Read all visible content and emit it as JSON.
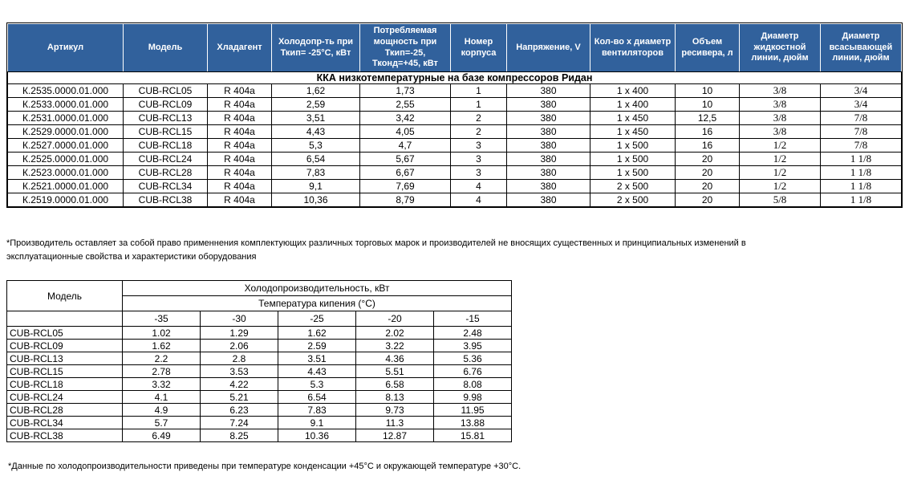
{
  "colors": {
    "header_bg": "#31619C",
    "header_text": "#FFFFFF",
    "border": "#000000"
  },
  "spec_table": {
    "headers": [
      "Артикул",
      "Модель",
      "Хладагент",
      "Холодопр-ть при Ткип= -25°С, кВт",
      "Потребляемая мощность при Ткип=-25, Тконд=+45, кВт",
      "Номер корпуса",
      "Напряжение, V",
      "Кол-во х диаметр вентиляторов",
      "Объем ресивера, л",
      "Диаметр жидкостной линии, дюйм",
      "Диаметр всасывающей линии, дюйм"
    ],
    "section_title": "ККА низкотемпературные на базе компрессоров Ридан",
    "rows": [
      [
        "К.2535.0000.01.000",
        "CUB-RCL05",
        "R 404a",
        "1,62",
        "1,73",
        "1",
        "380",
        "1 x 400",
        "10",
        "3/8",
        "3/4"
      ],
      [
        "К.2533.0000.01.000",
        "CUB-RCL09",
        "R 404a",
        "2,59",
        "2,55",
        "1",
        "380",
        "1 x 400",
        "10",
        "3/8",
        "3/4"
      ],
      [
        "К.2531.0000.01.000",
        "CUB-RCL13",
        "R 404a",
        "3,51",
        "3,42",
        "2",
        "380",
        "1 x 450",
        "12,5",
        "3/8",
        "7/8"
      ],
      [
        "К.2529.0000.01.000",
        "CUB-RCL15",
        "R 404a",
        "4,43",
        "4,05",
        "2",
        "380",
        "1 x 450",
        "16",
        "3/8",
        "7/8"
      ],
      [
        "К.2527.0000.01.000",
        "CUB-RCL18",
        "R 404a",
        "5,3",
        "4,7",
        "3",
        "380",
        "1 x 500",
        "16",
        "1/2",
        "7/8"
      ],
      [
        "К.2525.0000.01.000",
        "CUB-RCL24",
        "R 404a",
        "6,54",
        "5,67",
        "3",
        "380",
        "1 x 500",
        "20",
        "1/2",
        "1 1/8"
      ],
      [
        "К.2523.0000.01.000",
        "CUB-RCL28",
        "R 404a",
        "7,83",
        "6,67",
        "3",
        "380",
        "1 x 500",
        "20",
        "1/2",
        "1 1/8"
      ],
      [
        "К.2521.0000.01.000",
        "CUB-RCL34",
        "R 404a",
        "9,1",
        "7,69",
        "4",
        "380",
        "2 x 500",
        "20",
        "1/2",
        "1 1/8"
      ],
      [
        "К.2519.0000.01.000",
        "CUB-RCL38",
        "R 404a",
        "10,36",
        "8,79",
        "4",
        "380",
        "2 x 500",
        "20",
        "5/8",
        "1 1/8"
      ]
    ]
  },
  "manufacturer_note": {
    "line1": "*Производитель оставляет за собой право применнения комплектующих различных торговых марок и производителей не вносящих существенных и принципиальных изменений в",
    "line2": "эксплуатационные свойства и характеристики оборудования"
  },
  "capacity_table": {
    "model_header": "Модель",
    "group_header": "Холодопроизводительность, кВт",
    "sub_header": "Температура кипения (°С)",
    "temps": [
      "-35",
      "-30",
      "-25",
      "-20",
      "-15"
    ],
    "rows": [
      {
        "model": "CUB-RCL05",
        "values": [
          "1.02",
          "1.29",
          "1.62",
          "2.02",
          "2.48"
        ]
      },
      {
        "model": "CUB-RCL09",
        "values": [
          "1.62",
          "2.06",
          "2.59",
          "3.22",
          "3.95"
        ]
      },
      {
        "model": "CUB-RCL13",
        "values": [
          "2.2",
          "2.8",
          "3.51",
          "4.36",
          "5.36"
        ]
      },
      {
        "model": "CUB-RCL15",
        "values": [
          "2.78",
          "3.53",
          "4.43",
          "5.51",
          "6.76"
        ]
      },
      {
        "model": "CUB-RCL18",
        "values": [
          "3.32",
          "4.22",
          "5.3",
          "6.58",
          "8.08"
        ]
      },
      {
        "model": "CUB-RCL24",
        "values": [
          "4.1",
          "5.21",
          "6.54",
          "8.13",
          "9.98"
        ]
      },
      {
        "model": "CUB-RCL28",
        "values": [
          "4.9",
          "6.23",
          "7.83",
          "9.73",
          "11.95"
        ]
      },
      {
        "model": "CUB-RCL34",
        "values": [
          "5.7",
          "7.24",
          "9.1",
          "11.3",
          "13.88"
        ]
      },
      {
        "model": "CUB-RCL38",
        "values": [
          "6.49",
          "8.25",
          "10.36",
          "12.87",
          "15.81"
        ]
      }
    ]
  },
  "capacity_note": "*Данные по холодопроизводительности приведены при температуре конденсации +45°С и окружающей температуре +30°С."
}
